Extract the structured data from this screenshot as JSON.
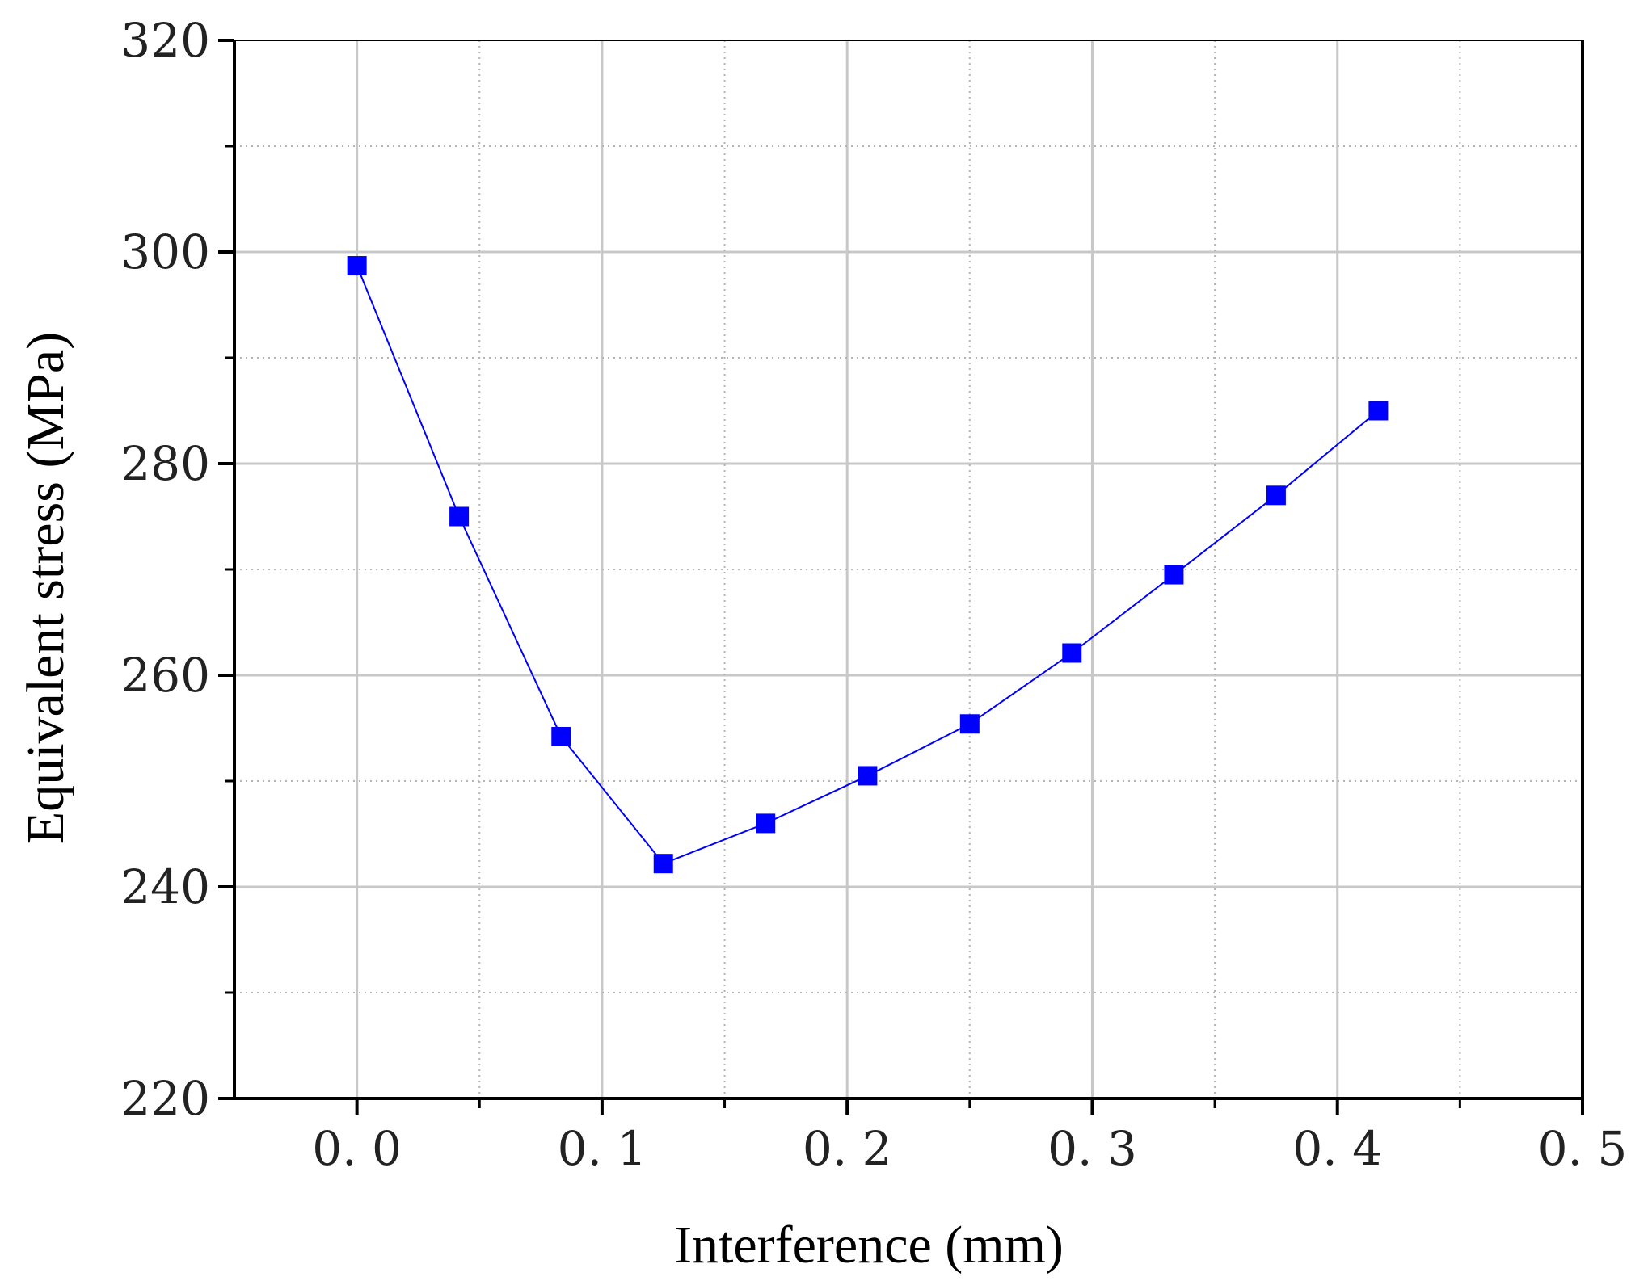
{
  "chart_data": {
    "type": "line",
    "xlabel": "Interference (mm)",
    "ylabel": "Equivalent stress (MPa)",
    "xlim": [
      -0.05,
      0.5
    ],
    "ylim": [
      220,
      320
    ],
    "x_ticks": [
      0.0,
      0.1,
      0.2,
      0.3,
      0.4,
      0.5
    ],
    "x_tick_labels": [
      "0. 0",
      "0. 1",
      "0. 2",
      "0. 3",
      "0. 4",
      "0. 5"
    ],
    "y_ticks": [
      220,
      240,
      260,
      280,
      300,
      320
    ],
    "y_tick_labels": [
      "220",
      "240",
      "260",
      "280",
      "300",
      "320"
    ],
    "grid": true,
    "series": [
      {
        "x": [
          0.0,
          0.0417,
          0.0833,
          0.125,
          0.1667,
          0.2083,
          0.25,
          0.2917,
          0.3333,
          0.375,
          0.4167
        ],
        "values": [
          298.7,
          275.0,
          254.2,
          242.2,
          246.0,
          250.5,
          255.4,
          262.1,
          269.5,
          277.0,
          285.0
        ],
        "color": "#0000ff",
        "marker": "square"
      }
    ]
  }
}
